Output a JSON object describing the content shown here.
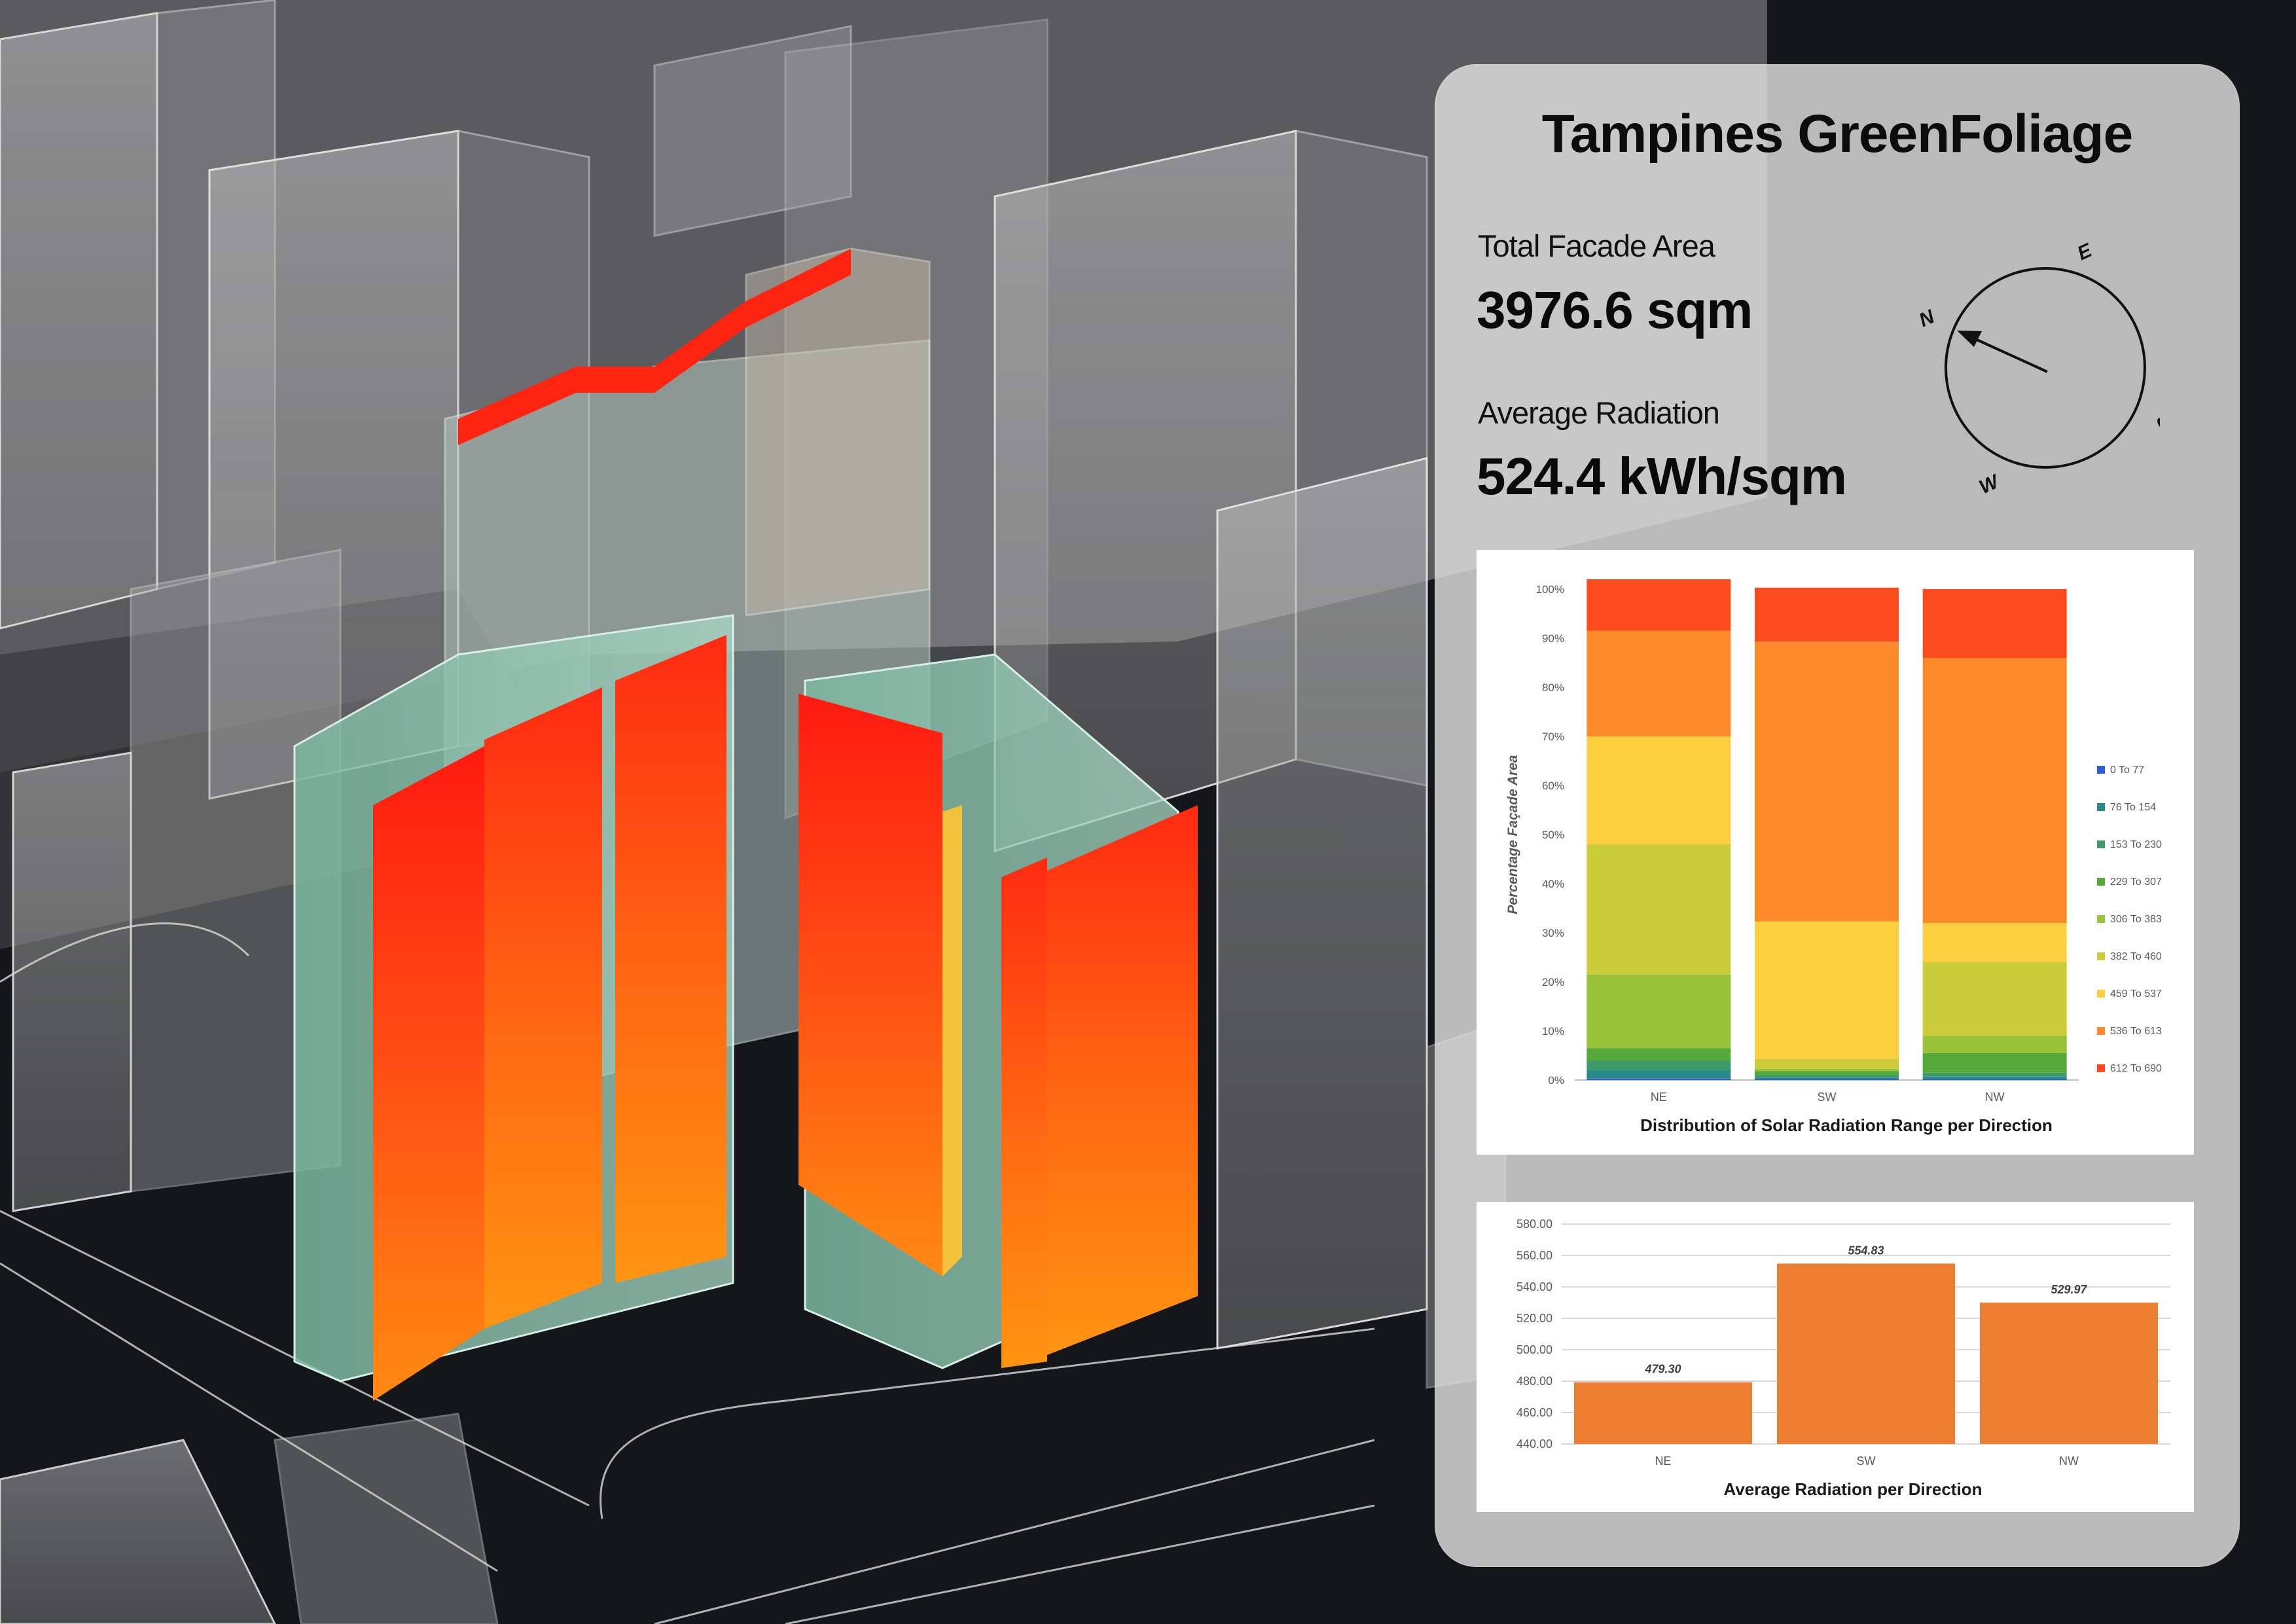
{
  "title": "Tampines GreenFoliage",
  "facade_area": {
    "label": "Total Facade Area",
    "value": "3976.6 sqm"
  },
  "average_radiation": {
    "label": "Average Radiation",
    "value": "524.4 kWh/sqm"
  },
  "compass": {
    "north": "N",
    "east": "E",
    "south": "S",
    "west": "W"
  },
  "chart_data": [
    {
      "type": "bar",
      "stacked": true,
      "title": "Distribution of Solar Radiation Range per Direction",
      "ylabel": "Percentage Façade Area",
      "xlabel": "",
      "categories": [
        "NE",
        "SW",
        "NW"
      ],
      "ylim": [
        0,
        100
      ],
      "yticks": [
        "0%",
        "10%",
        "20%",
        "30%",
        "40%",
        "50%",
        "60%",
        "70%",
        "80%",
        "90%",
        "100%"
      ],
      "legend_position": "right",
      "series": [
        {
          "name": "0 To 77",
          "color": "#2f5fd0",
          "values": [
            0.3,
            0.2,
            0.2
          ]
        },
        {
          "name": "76 To 154",
          "color": "#2a8a8a",
          "values": [
            1.7,
            0.3,
            0.5
          ]
        },
        {
          "name": "153 To 230",
          "color": "#3f9a6a",
          "values": [
            2,
            0.5,
            0.8
          ]
        },
        {
          "name": "229 To 307",
          "color": "#55a83a",
          "values": [
            2.5,
            0.8,
            4
          ]
        },
        {
          "name": "306 To 383",
          "color": "#98c23a",
          "values": [
            15,
            0.5,
            3.5
          ]
        },
        {
          "name": "382 To 460",
          "color": "#cccc3a",
          "values": [
            26.5,
            2,
            15
          ]
        },
        {
          "name": "459 To 537",
          "color": "#fbcf3f",
          "values": [
            22,
            28,
            8
          ]
        },
        {
          "name": "536 To 613",
          "color": "#fd8a2a",
          "values": [
            21.5,
            57,
            54
          ]
        },
        {
          "name": "612 To 690",
          "color": "#fd4a1f",
          "values": [
            10.5,
            11,
            14
          ]
        }
      ]
    },
    {
      "type": "bar",
      "title": "Average Radiation per Direction",
      "xlabel": "",
      "ylabel": "",
      "categories": [
        "NE",
        "SW",
        "NW"
      ],
      "values": [
        479.3,
        554.83,
        529.97
      ],
      "value_labels": [
        "479.30",
        "554.83",
        "529.97"
      ],
      "ylim": [
        440,
        580
      ],
      "yticks": [
        "440.00",
        "460.00",
        "480.00",
        "500.00",
        "520.00",
        "540.00",
        "560.00",
        "580.00"
      ],
      "color": "#ec7d31"
    }
  ]
}
